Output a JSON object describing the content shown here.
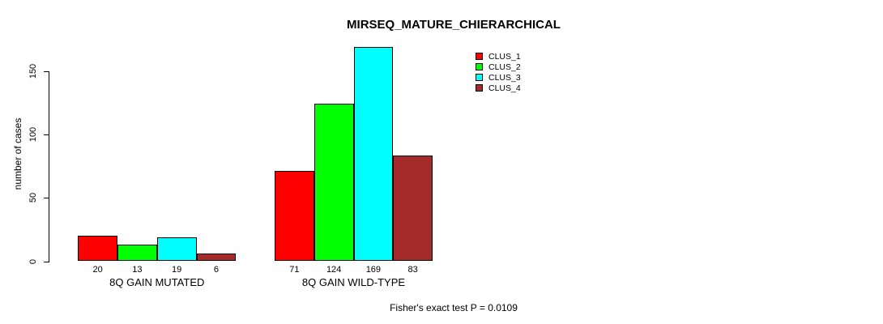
{
  "chart_data": {
    "type": "bar",
    "title": "MIRSEQ_MATURE_CHIERARCHICAL",
    "categories": [
      "8Q GAIN MUTATED",
      "8Q GAIN WILD-TYPE"
    ],
    "series": [
      {
        "name": "CLUS_1",
        "color": "#FF0000",
        "values": [
          20,
          71
        ]
      },
      {
        "name": "CLUS_2",
        "color": "#00FF00",
        "values": [
          13,
          124
        ]
      },
      {
        "name": "CLUS_3",
        "color": "#00FFFF",
        "values": [
          19,
          169
        ]
      },
      {
        "name": "CLUS_4",
        "color": "#A52A2A",
        "values": [
          6,
          83
        ]
      }
    ],
    "xlabel": "",
    "ylabel": "number of cases",
    "ylim": [
      0,
      150
    ],
    "yticks": [
      0,
      50,
      100,
      150
    ],
    "bar_value_labels": [
      [
        "20",
        "13",
        "19",
        "6"
      ],
      [
        "71",
        "124",
        "169",
        "83"
      ]
    ],
    "grid": false,
    "legend_position": "top-right",
    "legend_border": false,
    "annotation": "Fisher's exact test P = 0.0109"
  }
}
